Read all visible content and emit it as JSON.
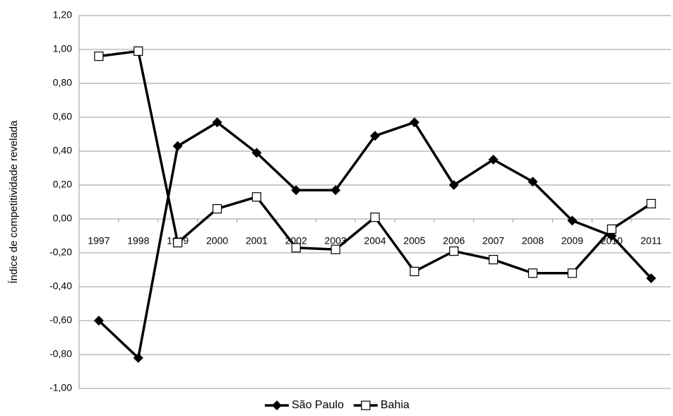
{
  "chart_data": {
    "type": "line",
    "y_label": "Índice de competitividade revelada",
    "categories": [
      "1997",
      "1998",
      "1999",
      "2000",
      "2001",
      "2002",
      "2003",
      "2004",
      "2005",
      "2006",
      "2007",
      "2008",
      "2009",
      "2010",
      "2011"
    ],
    "series": [
      {
        "name": "São Paulo",
        "color": "#000000",
        "marker": "diamond",
        "values": [
          -0.6,
          -0.82,
          0.43,
          0.57,
          0.39,
          0.17,
          0.17,
          0.49,
          0.57,
          0.2,
          0.35,
          0.22,
          -0.01,
          -0.1,
          -0.35
        ]
      },
      {
        "name": "Bahia",
        "color": "#000000",
        "marker": "square",
        "values": [
          0.96,
          0.99,
          -0.14,
          0.06,
          0.13,
          -0.17,
          -0.18,
          0.01,
          -0.31,
          -0.19,
          -0.24,
          -0.32,
          -0.32,
          -0.06,
          0.09
        ]
      }
    ],
    "ylim": [
      -1.0,
      1.2
    ],
    "yticks": [
      {
        "value": -1.0,
        "label": "-1,00"
      },
      {
        "value": -0.8,
        "label": "-0,80"
      },
      {
        "value": -0.6,
        "label": "-0,60"
      },
      {
        "value": -0.4,
        "label": "-0,40"
      },
      {
        "value": -0.2,
        "label": "-0,20"
      },
      {
        "value": 0,
        "label": "0,00"
      },
      {
        "value": 0.2,
        "label": "0,20"
      },
      {
        "value": 0.4,
        "label": "0,40"
      },
      {
        "value": 0.6,
        "label": "0,60"
      },
      {
        "value": 0.8,
        "label": "0,80"
      },
      {
        "value": 1.0,
        "label": "1,00"
      },
      {
        "value": 1.2,
        "label": "1,20"
      }
    ],
    "grid": true,
    "legend": "bottom"
  }
}
